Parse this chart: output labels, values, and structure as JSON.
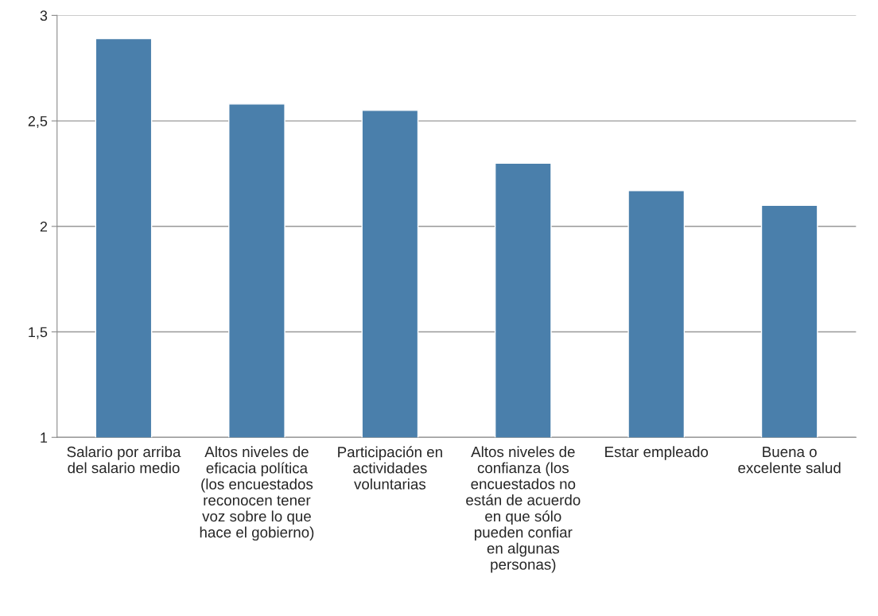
{
  "chart_data": {
    "type": "bar",
    "categories": [
      "Salario por arriba\ndel salario medio",
      "Altos niveles de\neficacia política\n(los encuestados\nreconocen tener\nvoz sobre lo que\nhace el gobierno)",
      "Participación en\nactividades\nvoluntarias",
      "Altos niveles de\nconfianza (los\nencuestados no\nestán de acuerdo\nen que sólo\npueden confiar\nen algunas\npersonas)",
      "Estar empleado",
      "Buena o\nexcelente salud"
    ],
    "values": [
      2.89,
      2.58,
      2.55,
      2.3,
      2.17,
      2.1
    ],
    "color": "#4a7fab",
    "ylim": [
      1,
      3
    ],
    "yticks": [
      1,
      {
        "value": 1.5,
        "label": "1,5"
      },
      2,
      {
        "value": 2.5,
        "label": "2,5"
      },
      3
    ],
    "grid": "y",
    "legend": false
  }
}
